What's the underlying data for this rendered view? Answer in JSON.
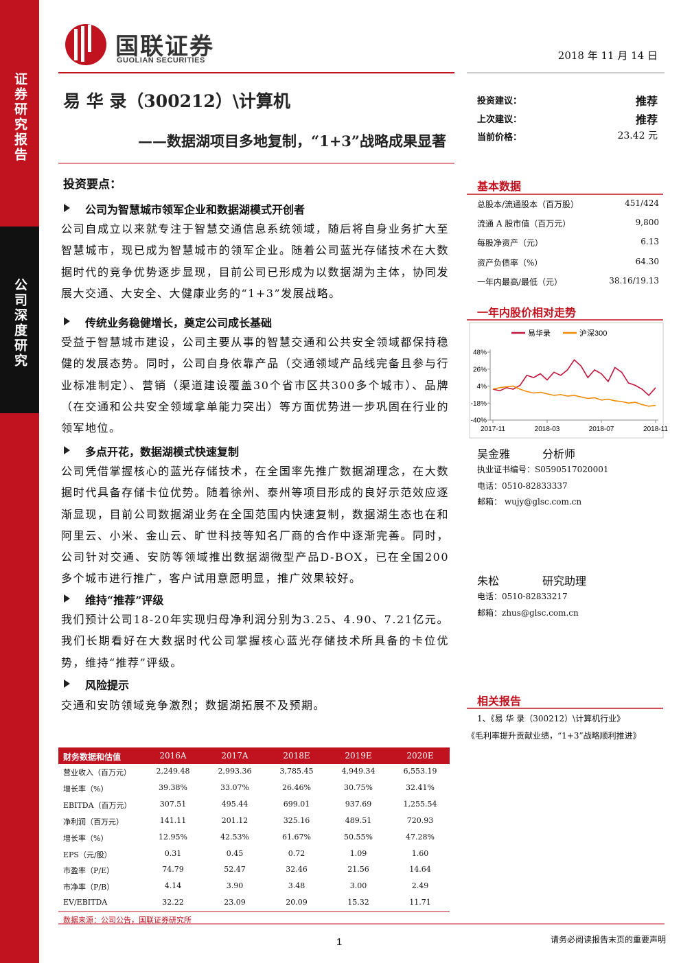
{
  "header": {
    "logo_cn": "国联证券",
    "logo_en": "GUOLIAN SECURITIES",
    "date": "2018 年 11 月 14 日"
  },
  "sidebar": {
    "top": "证券研究报告",
    "middle": "公司深度研究"
  },
  "title": {
    "main": "易 华 录（300212）\\计算机",
    "sub": "——数据湖项目多地复制，“1+3”战略成果显著"
  },
  "rating": {
    "rows": [
      [
        "投资建议：",
        "推荐"
      ],
      [
        "上次建议：",
        "推荐"
      ],
      [
        "当前价格：",
        "23.42 元"
      ]
    ]
  },
  "key_points": {
    "heading": "投资要点：",
    "sections": [
      {
        "heading": "公司为智慧城市领军企业和数据湖模式开创者",
        "paragraph": "公司自成立以来就专注于智慧交通信息系统领域，随后将自身业务扩大至智慧城市，现已成为智慧城市的领军企业。随着公司蓝光存储技术在大数据时代的竞争优势逐步显现，目前公司已形成为以数据湖为主体，协同发展大交通、大安全、大健康业务的“1+3”发展战略。"
      },
      {
        "heading": "传统业务稳健增长，奠定公司成长基础",
        "paragraph": "受益于智慧城市建设，公司主要从事的智慧交通和公共安全领域都保持稳健的发展态势。同时，公司自身依靠产品（交通领域产品线完备且参与行业标准制定）、营销（渠道建设覆盖30个省市区共300多个城市）、品牌（在交通和公共安全领域拿单能力突出）等方面优势进一步巩固在行业的领军地位。"
      },
      {
        "heading": "多点开花，数据湖模式快速复制",
        "paragraph": "公司凭借掌握核心的蓝光存储技术，在全国率先推广数据湖理念，在大数据时代具备存储卡位优势。随着徐州、泰州等项目形成的良好示范效应逐渐显现，目前公司数据湖业务在全国范围内快速复制，数据湖生态也在和阿里云、小米、金山云、旷世科技等知名厂商的合作中逐渐完善。同时，公司针对交通、安防等领域推出数据湖微型产品D-BOX，已在全国200多个城市进行推广，客户试用意愿明显，推广效果较好。"
      },
      {
        "heading": "维持“推荐”评级",
        "paragraph": "我们预计公司18-20年实现归母净利润分别为3.25、4.90、7.21亿元。我们长期看好在大数据时代公司掌握核心蓝光存储技术所具备的卡位优势，维持“推荐”评级。"
      },
      {
        "heading": "风险提示",
        "paragraph": "交通和安防领域竞争激烈；数据湖拓展不及预期。"
      }
    ]
  },
  "basic_data": {
    "heading": "基本数据",
    "rows": [
      [
        "总股本/流通股本（百万股）",
        "451/424"
      ],
      [
        "流通 A 股市值（百万元）",
        "9,800"
      ],
      [
        "每股净资产（元）",
        "6.13"
      ],
      [
        "资产负债率（%）",
        "64.30"
      ],
      [
        "一年内最高/最低（元）",
        "38.16/19.13"
      ]
    ]
  },
  "chart_data": {
    "type": "line",
    "title": "一年内股价相对走势",
    "categories": [
      "2017-11",
      null,
      null,
      null,
      null,
      null,
      null,
      null,
      "2018-03",
      null,
      null,
      null,
      null,
      null,
      null,
      null,
      "2018-07",
      null,
      null,
      null,
      null,
      null,
      null,
      null,
      "2018-11"
    ],
    "series": [
      {
        "name": "易华录",
        "color": "#c0143c",
        "values": [
          0,
          -2,
          2,
          0,
          5,
          18,
          15,
          20,
          12,
          22,
          18,
          25,
          38,
          30,
          15,
          25,
          20,
          10,
          28,
          22,
          8,
          5,
          0,
          -8,
          2
        ]
      },
      {
        "name": "沪深300",
        "color": "#f08a00",
        "values": [
          0,
          2,
          3,
          4,
          0,
          -3,
          -5,
          -4,
          -6,
          -8,
          -7,
          -9,
          -8,
          -10,
          -12,
          -11,
          -14,
          -13,
          -15,
          -16,
          -18,
          -17,
          -20,
          -22,
          -21
        ]
      }
    ],
    "ylim": [
      -40,
      48
    ],
    "yticks": [
      {
        "value": 48,
        "label": "48%"
      },
      {
        "value": 26,
        "label": "26%"
      },
      {
        "value": 4,
        "label": "4%"
      },
      {
        "value": -18,
        "label": "-18%"
      },
      {
        "value": -40,
        "label": "-40%"
      }
    ]
  },
  "analysts": [
    {
      "name": "吴金雅",
      "role": "分析师",
      "lines": [
        "执业证书编号：S0590517020001",
        "电话：0510-82833337",
        "邮箱： wujy@glsc.com.cn"
      ]
    },
    {
      "name": "朱松",
      "role": "研究助理",
      "lines": [
        "电话：0510-82833217",
        "邮箱：zhus@glsc.com.cn"
      ]
    }
  ],
  "related": {
    "heading": "相关报告",
    "items": [
      "1、《易 华 录（300212）\\计算机行业》",
      "《毛利率提升贡献业绩，“1+3”战略顺利推进》"
    ]
  },
  "financials": {
    "header": [
      "财务数据和估值",
      "2016A",
      "2017A",
      "2018E",
      "2019E",
      "2020E"
    ],
    "rows": [
      [
        "营业收入（百万元）",
        "2,249.48",
        "2,993.36",
        "3,785.45",
        "4,949.34",
        "6,553.19"
      ],
      [
        "增长率（%）",
        "39.38%",
        "33.07%",
        "26.46%",
        "30.75%",
        "32.41%"
      ],
      [
        "EBITDA（百万元）",
        "307.51",
        "495.44",
        "699.01",
        "937.69",
        "1,255.54"
      ],
      [
        "净利润（百万元）",
        "141.11",
        "201.12",
        "325.16",
        "489.51",
        "720.93"
      ],
      [
        "增长率（%）",
        "12.95%",
        "42.53%",
        "61.67%",
        "50.55%",
        "47.28%"
      ],
      [
        "EPS（元/股）",
        "0.31",
        "0.45",
        "0.72",
        "1.09",
        "1.60"
      ],
      [
        "市盈率（P/E）",
        "74.79",
        "52.47",
        "32.46",
        "21.56",
        "14.64"
      ],
      [
        "市净率（P/B）",
        "4.14",
        "3.90",
        "3.48",
        "3.00",
        "2.49"
      ],
      [
        "EV/EBITDA",
        "32.22",
        "23.09",
        "20.09",
        "15.32",
        "11.71"
      ]
    ],
    "source": "数据来源：公司公告，国联证券研究所"
  },
  "footer": {
    "page": "1",
    "disclaimer": "请务必阅读报告末页的重要声明"
  }
}
